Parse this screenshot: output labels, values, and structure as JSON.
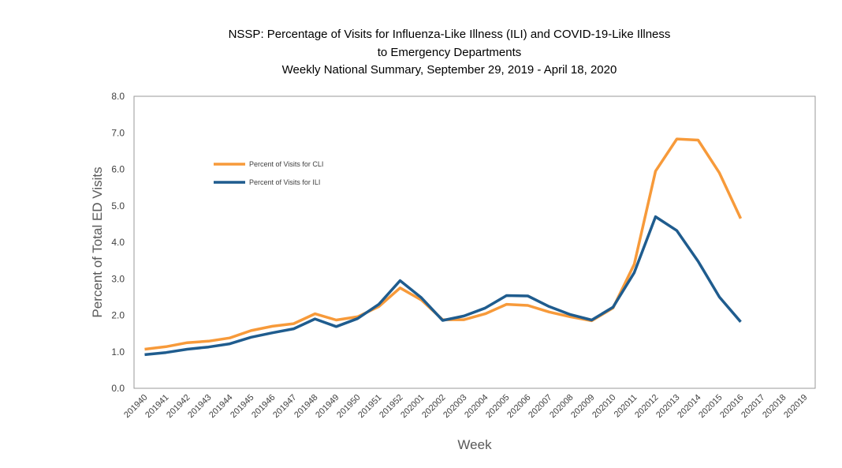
{
  "chart_data": {
    "type": "line",
    "title_lines": [
      "NSSP: Percentage of Visits for Influenza-Like Illness (ILI) and COVID-19-Like Illness",
      "to Emergency Departments",
      "Weekly National Summary, September 29, 2019 - April 18, 2020"
    ],
    "xlabel": "Week",
    "ylabel": "Percent of Total ED Visits",
    "ylim": [
      0,
      8
    ],
    "yticks": [
      "0.0",
      "1.0",
      "2.0",
      "3.0",
      "4.0",
      "5.0",
      "6.0",
      "7.0",
      "8.0"
    ],
    "grid": false,
    "legend_position": "upper-left inside plot",
    "categories": [
      "201940",
      "201941",
      "201942",
      "201943",
      "201944",
      "201945",
      "201946",
      "201947",
      "201948",
      "201949",
      "201950",
      "201951",
      "201952",
      "202001",
      "202002",
      "202003",
      "202004",
      "202005",
      "202006",
      "202007",
      "202008",
      "202009",
      "202010",
      "202011",
      "202012",
      "202013",
      "202014",
      "202015",
      "202016",
      "202017",
      "202018",
      "202019"
    ],
    "series": [
      {
        "name": "Percent of Visits for CLI",
        "color": "#F79A3A",
        "values": [
          1.07,
          1.14,
          1.25,
          1.29,
          1.38,
          1.58,
          1.7,
          1.77,
          2.04,
          1.87,
          1.96,
          2.24,
          2.75,
          2.42,
          1.88,
          1.88,
          2.04,
          2.3,
          2.27,
          2.09,
          1.96,
          1.85,
          2.2,
          3.4,
          5.95,
          6.83,
          6.8,
          5.9,
          4.65,
          null,
          null,
          null
        ]
      },
      {
        "name": "Percent of Visits for ILI",
        "color": "#1F5C8E",
        "values": [
          0.92,
          0.98,
          1.07,
          1.13,
          1.22,
          1.4,
          1.52,
          1.63,
          1.9,
          1.69,
          1.91,
          2.3,
          2.95,
          2.48,
          1.86,
          1.98,
          2.2,
          2.54,
          2.53,
          2.24,
          2.02,
          1.87,
          2.22,
          3.17,
          4.7,
          4.32,
          3.48,
          2.5,
          1.82,
          null,
          null,
          null
        ]
      }
    ]
  }
}
